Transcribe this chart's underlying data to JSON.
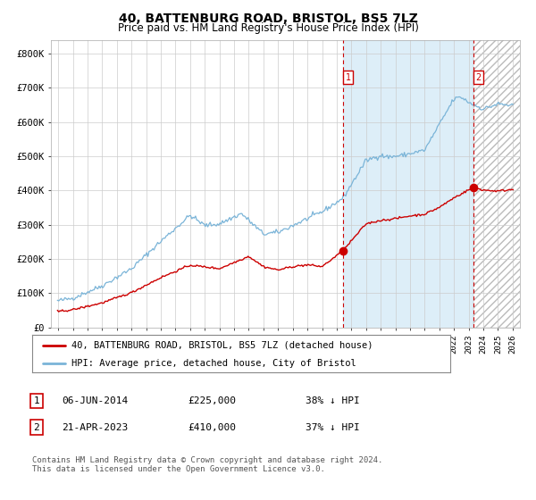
{
  "title": "40, BATTENBURG ROAD, BRISTOL, BS5 7LZ",
  "subtitle": "Price paid vs. HM Land Registry's House Price Index (HPI)",
  "ylabel_ticks": [
    "£0",
    "£100K",
    "£200K",
    "£300K",
    "£400K",
    "£500K",
    "£600K",
    "£700K",
    "£800K"
  ],
  "ytick_vals": [
    0,
    100000,
    200000,
    300000,
    400000,
    500000,
    600000,
    700000,
    800000
  ],
  "ylim": [
    0,
    840000
  ],
  "hpi_color": "#7ab4d8",
  "hpi_fill_color": "#ddeef8",
  "price_color": "#cc0000",
  "background_color": "#ffffff",
  "grid_color": "#cccccc",
  "sale1_date_num": 2014.44,
  "sale1_price": 225000,
  "sale2_date_num": 2023.3,
  "sale2_price": 410000,
  "legend_label_red": "40, BATTENBURG ROAD, BRISTOL, BS5 7LZ (detached house)",
  "legend_label_blue": "HPI: Average price, detached house, City of Bristol",
  "footnote": "Contains HM Land Registry data © Crown copyright and database right 2024.\nThis data is licensed under the Open Government Licence v3.0.",
  "xstart": 1995,
  "xend": 2026,
  "ann1_num": "1",
  "ann1_date": "06-JUN-2014",
  "ann1_price": "£225,000",
  "ann1_pct": "38% ↓ HPI",
  "ann2_num": "2",
  "ann2_date": "21-APR-2023",
  "ann2_price": "£410,000",
  "ann2_pct": "37% ↓ HPI"
}
